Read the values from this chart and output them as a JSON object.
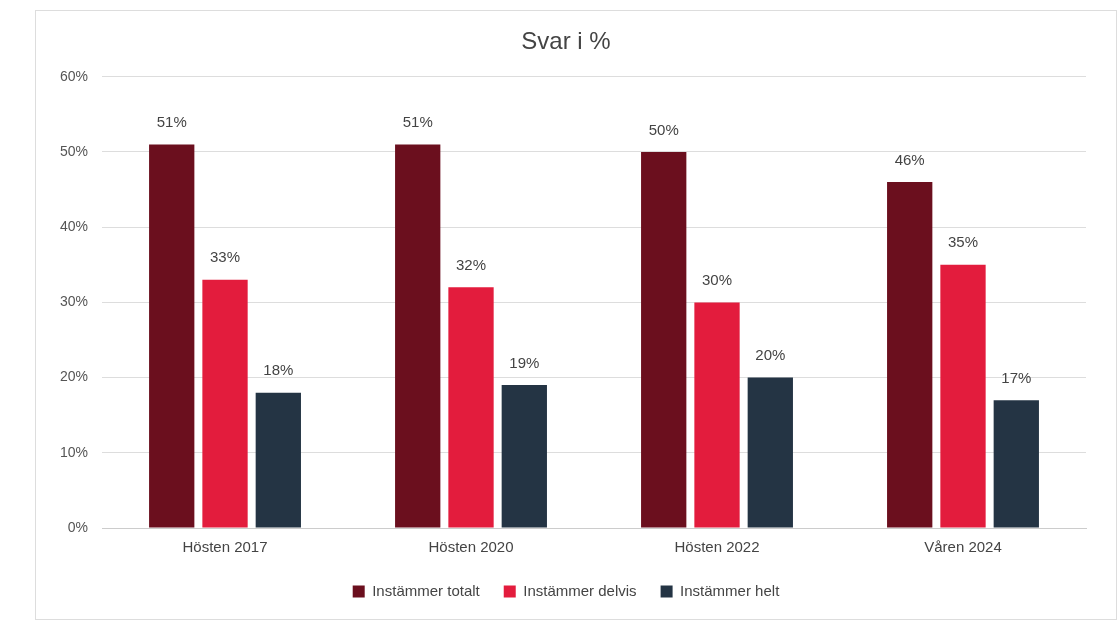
{
  "chart_data": {
    "type": "bar",
    "title": "Svar i %",
    "categories": [
      "Hösten 2017",
      "Hösten 2020",
      "Hösten 2022",
      "Våren 2024"
    ],
    "series": [
      {
        "name": "Instämmer totalt",
        "color": "#6b0f1e",
        "values": [
          51,
          51,
          50,
          46
        ],
        "value_labels": [
          "51%",
          "51%",
          "50%",
          "46%"
        ]
      },
      {
        "name": "Instämmer delvis",
        "color": "#e31c3d",
        "values": [
          33,
          32,
          30,
          35
        ],
        "value_labels": [
          "33%",
          "32%",
          "30%",
          "35%"
        ]
      },
      {
        "name": "Instämmer helt",
        "color": "#243444",
        "values": [
          18,
          19,
          20,
          17
        ],
        "value_labels": [
          "18%",
          "19%",
          "20%",
          "17%"
        ]
      }
    ],
    "ylim": [
      0,
      60
    ],
    "yticks": [
      {
        "value": 0,
        "label": "0%"
      },
      {
        "value": 10,
        "label": "10%"
      },
      {
        "value": 20,
        "label": "20%"
      },
      {
        "value": 30,
        "label": "30%"
      },
      {
        "value": 40,
        "label": "40%"
      },
      {
        "value": 50,
        "label": "50%"
      },
      {
        "value": 60,
        "label": "60%"
      }
    ],
    "grid": "y",
    "legend": "bottom"
  }
}
